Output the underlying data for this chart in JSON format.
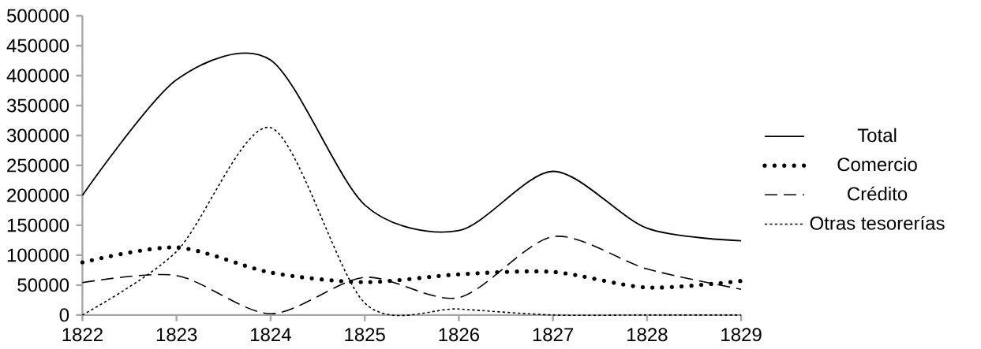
{
  "chart_data": {
    "type": "line",
    "x": [
      1822,
      1823,
      1824,
      1825,
      1826,
      1827,
      1828,
      1829
    ],
    "series": [
      {
        "name": "Total",
        "color": "#000000",
        "line_style": "solid",
        "values": [
          200000,
          393000,
          426000,
          184000,
          141000,
          240000,
          145000,
          124000
        ]
      },
      {
        "name": "Comercio",
        "color": "#000000",
        "line_style": "dotted",
        "values": [
          88000,
          113000,
          71000,
          55000,
          68000,
          72000,
          46000,
          57000
        ]
      },
      {
        "name": "Crédito",
        "color": "#000000",
        "line_style": "dashed",
        "values": [
          54000,
          66000,
          2000,
          63000,
          29000,
          131000,
          77000,
          43000
        ]
      },
      {
        "name": "Otras tesorerías",
        "color": "#000000",
        "line_style": "dotted",
        "values": [
          0,
          106000,
          313000,
          20000,
          10000,
          0,
          0,
          0
        ]
      }
    ],
    "xlim": [
      1822,
      1829
    ],
    "xticks": [
      1822,
      1823,
      1824,
      1825,
      1826,
      1827,
      1828,
      1829
    ],
    "ylim": [
      0,
      500000
    ],
    "yticks": [
      0,
      50000,
      100000,
      150000,
      200000,
      250000,
      300000,
      350000,
      400000,
      450000,
      500000
    ],
    "legend": "right",
    "grid": false
  }
}
